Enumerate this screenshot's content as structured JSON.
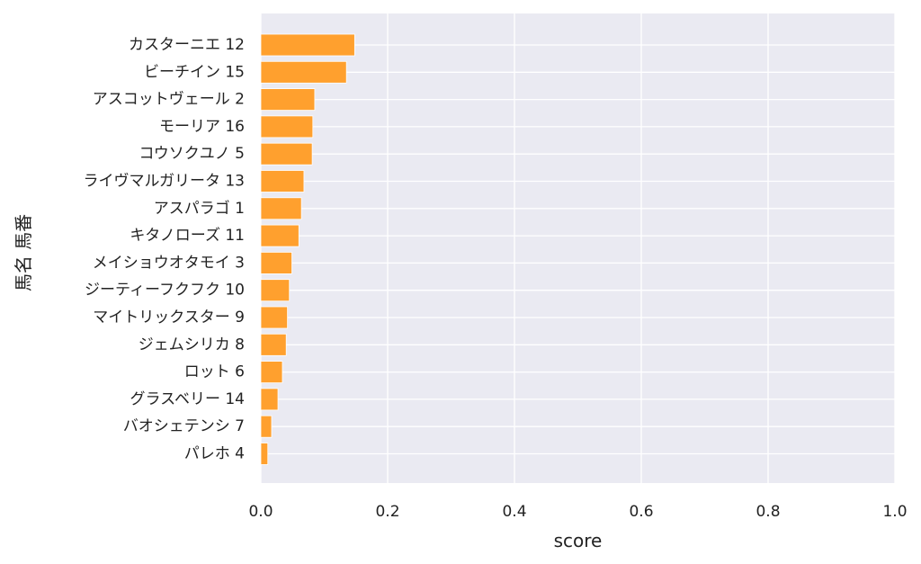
{
  "chart_data": {
    "type": "bar",
    "orientation": "horizontal",
    "xlabel": "score",
    "ylabel": "馬名 馬番",
    "xlim": [
      0.0,
      1.0
    ],
    "xticks": [
      "0.0",
      "0.2",
      "0.4",
      "0.6",
      "0.8",
      "1.0"
    ],
    "grid": true,
    "bar_color": "#ffa02e",
    "background": "#eaeaf2",
    "categories": [
      "カスターニエ 12",
      "ビーチイン 15",
      "アスコットヴェール 2",
      "モーリア 16",
      "コウソクユノ 5",
      "ライヴマルガリータ 13",
      "アスパラゴ 1",
      "キタノローズ 11",
      "メイショウオタモイ 3",
      "ジーティーフクフク 10",
      "マイトリックスター 9",
      "ジェムシリカ 8",
      "ロット 6",
      "グラスベリー 14",
      "バオシェテンシ 7",
      "パレホ 4"
    ],
    "values": [
      0.148,
      0.135,
      0.085,
      0.082,
      0.081,
      0.068,
      0.064,
      0.06,
      0.049,
      0.045,
      0.042,
      0.04,
      0.034,
      0.027,
      0.017,
      0.011
    ]
  }
}
